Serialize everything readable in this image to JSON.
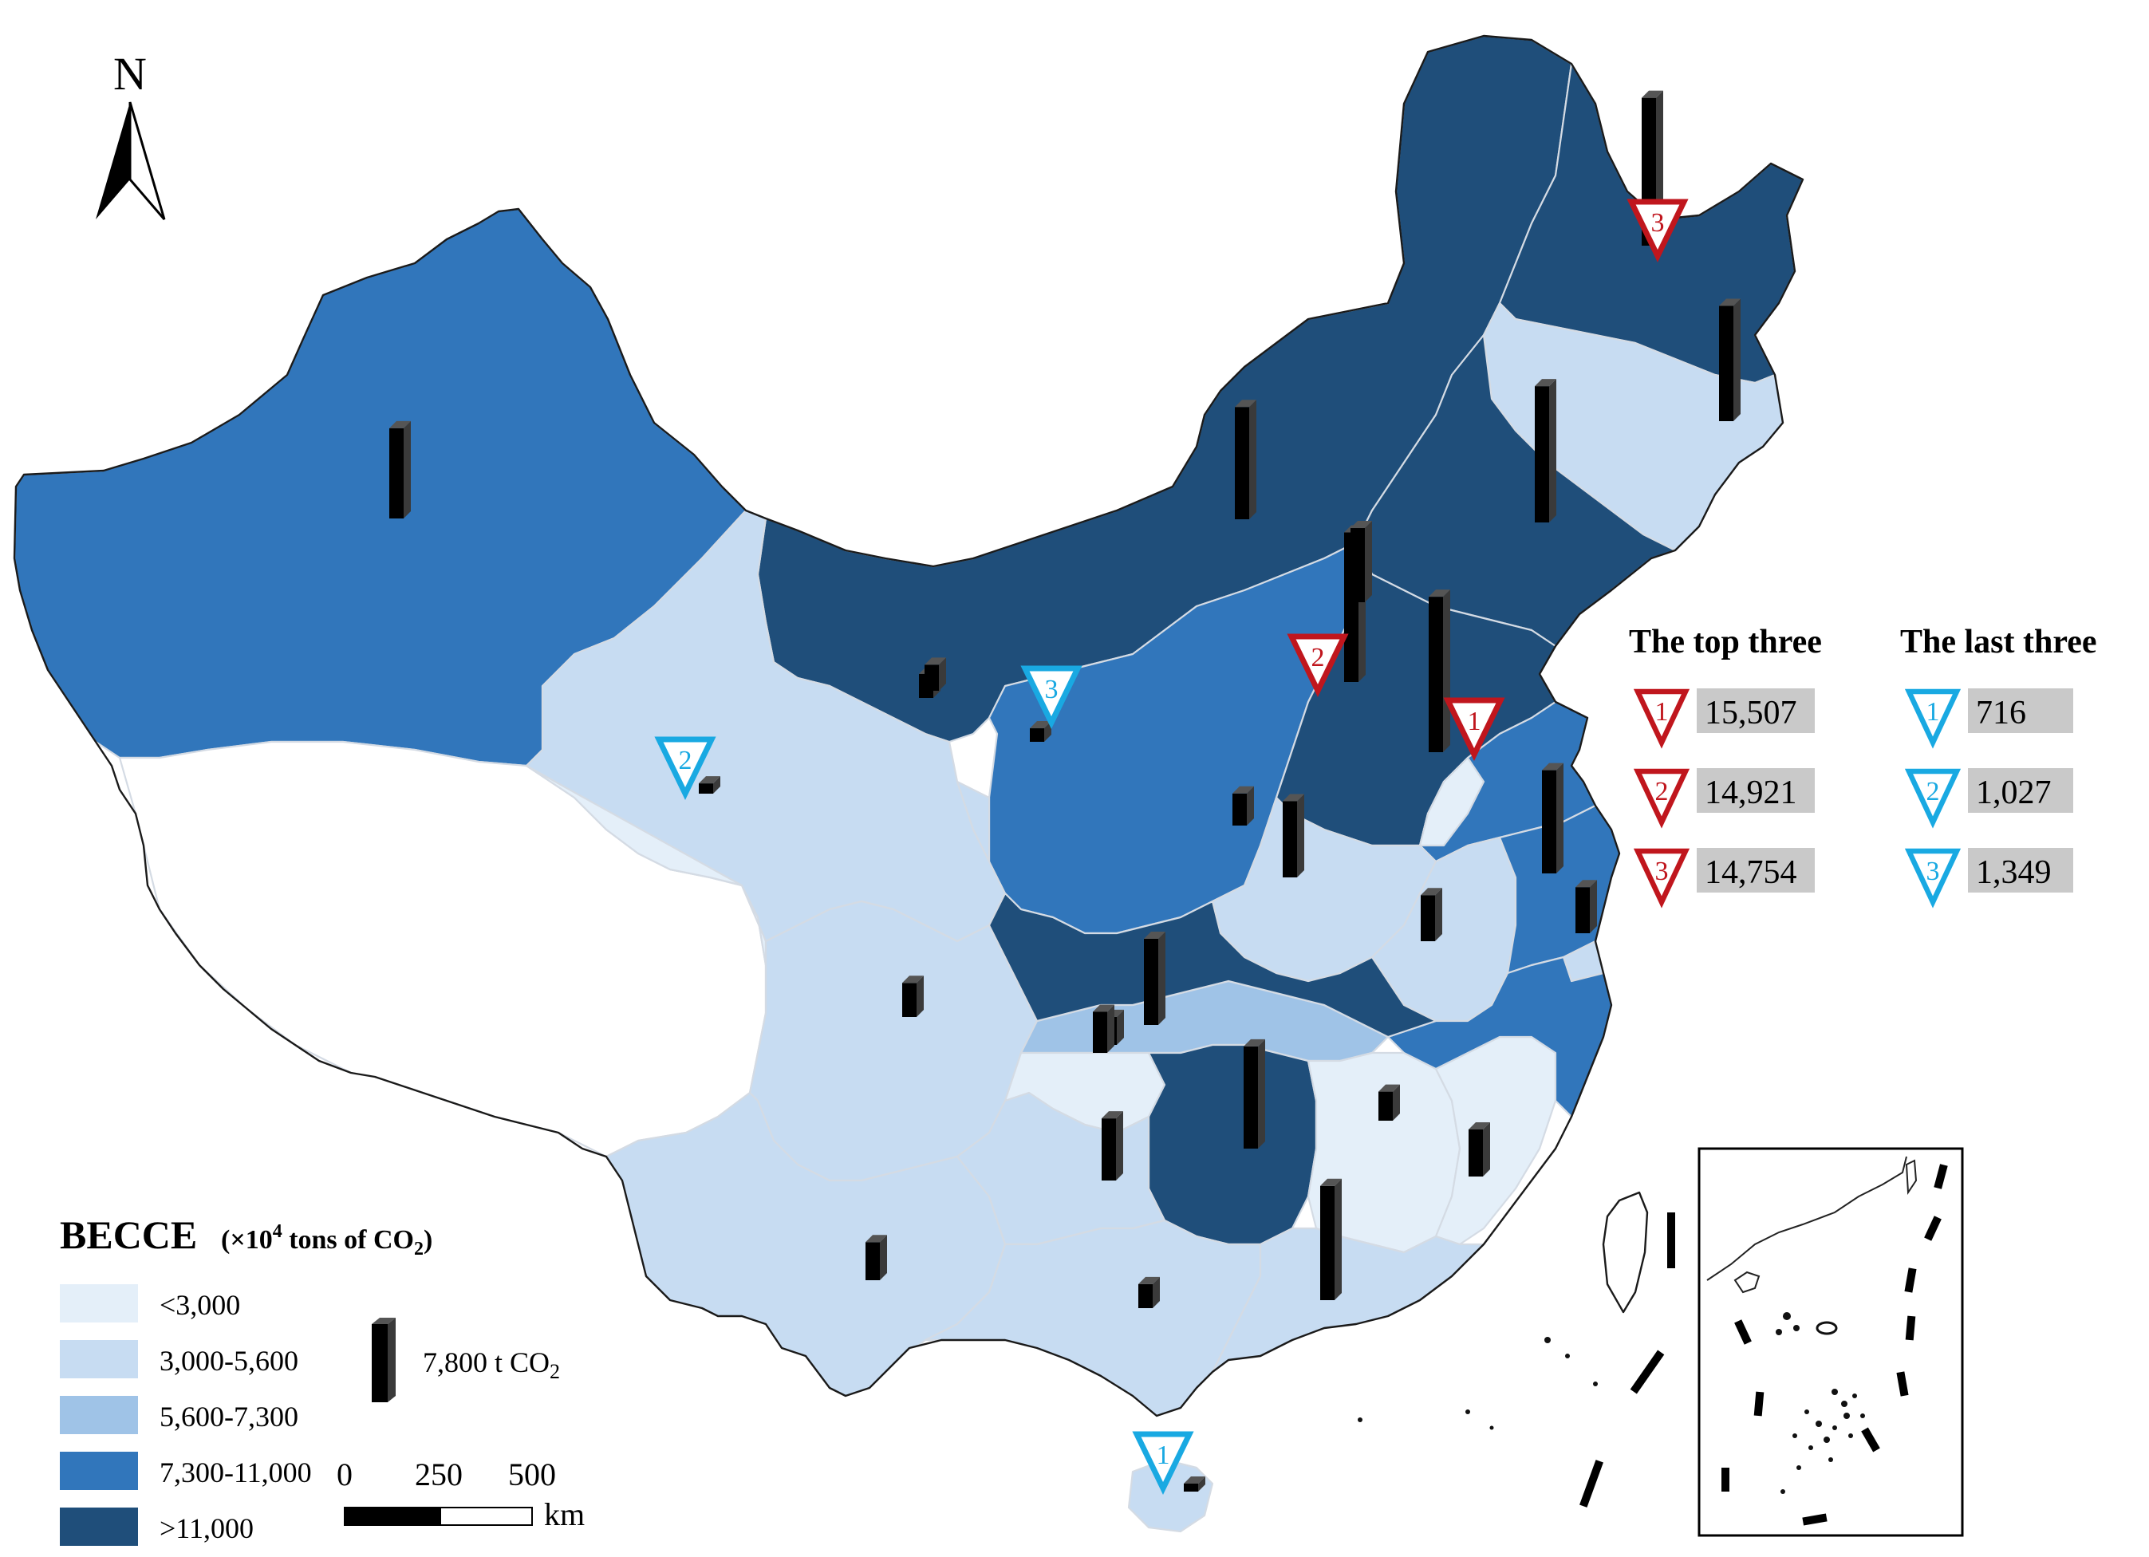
{
  "north_arrow": {
    "label": "N",
    "icon": "north-arrow-icon"
  },
  "legend": {
    "title_main": "BECCE",
    "title_unit_prefix": "(×10",
    "title_unit_exp": "4",
    "title_unit_mid": " tons of CO",
    "title_unit_sub": "2",
    "title_unit_suffix": ")",
    "classes": [
      {
        "label": "<3,000",
        "color": "#e4eff9"
      },
      {
        "label": "3,000-5,600",
        "color": "#c7dcf2"
      },
      {
        "label": "5,600-7,300",
        "color": "#9fc3e7"
      },
      {
        "label": "7,300-11,000",
        "color": "#3176bb"
      },
      {
        "label": ">11,000",
        "color": "#1f4e7a"
      }
    ],
    "bar_value": 7800,
    "bar_label_main": "7,800 t CO",
    "bar_label_sub": "2"
  },
  "scale_bar": {
    "ticks": [
      "0",
      "250",
      "500"
    ],
    "unit": "km"
  },
  "ranking": {
    "top_title": "The top three",
    "last_title": "The last three",
    "top_color": "#c0161d",
    "last_color": "#19a9e2",
    "top": [
      {
        "rank": "1",
        "value": "15,507"
      },
      {
        "rank": "2",
        "value": "14,921"
      },
      {
        "rank": "3",
        "value": "14,754"
      }
    ],
    "last": [
      {
        "rank": "1",
        "value": "716"
      },
      {
        "rank": "2",
        "value": "1,027"
      },
      {
        "rank": "3",
        "value": "1,349"
      }
    ]
  },
  "map_markers": [
    {
      "group": "top",
      "rank": "1"
    },
    {
      "group": "top",
      "rank": "2"
    },
    {
      "group": "top",
      "rank": "3"
    },
    {
      "group": "last",
      "rank": "1"
    },
    {
      "group": "last",
      "rank": "2"
    },
    {
      "group": "last",
      "rank": "3"
    }
  ],
  "regions": [
    {
      "class": 3
    },
    {
      "class": 0
    },
    {
      "class": 4
    },
    {
      "class": 4
    },
    {
      "class": 1
    },
    {
      "class": 4
    },
    {
      "class": 1
    },
    {
      "class": 3
    },
    {
      "class": 4
    },
    {
      "class": 3
    },
    {
      "class": 1
    },
    {
      "class": 1
    },
    {
      "class": 1
    },
    {
      "class": 0
    },
    {
      "class": 1
    },
    {
      "class": 3
    },
    {
      "class": 2
    },
    {
      "class": 0
    },
    {
      "class": 1
    },
    {
      "class": 4
    },
    {
      "class": 0
    },
    {
      "class": 0
    },
    {
      "class": 3
    },
    {
      "class": 1
    },
    {
      "class": 1
    },
    {
      "class": 1
    },
    {
      "class": 1
    },
    {
      "class": 0
    },
    {
      "class": 4
    },
    {
      "class": 4
    }
  ],
  "province_bars": [
    9000,
    8600,
    14754,
    15507,
    14921,
    11500,
    3200,
    2800,
    7600,
    10300,
    11200,
    13600,
    7400,
    4600,
    4600,
    2400,
    10200,
    4100,
    3400,
    6200,
    2900,
    4700,
    2400,
    3800,
    11400,
    2600,
    1027,
    1349,
    716
  ]
}
